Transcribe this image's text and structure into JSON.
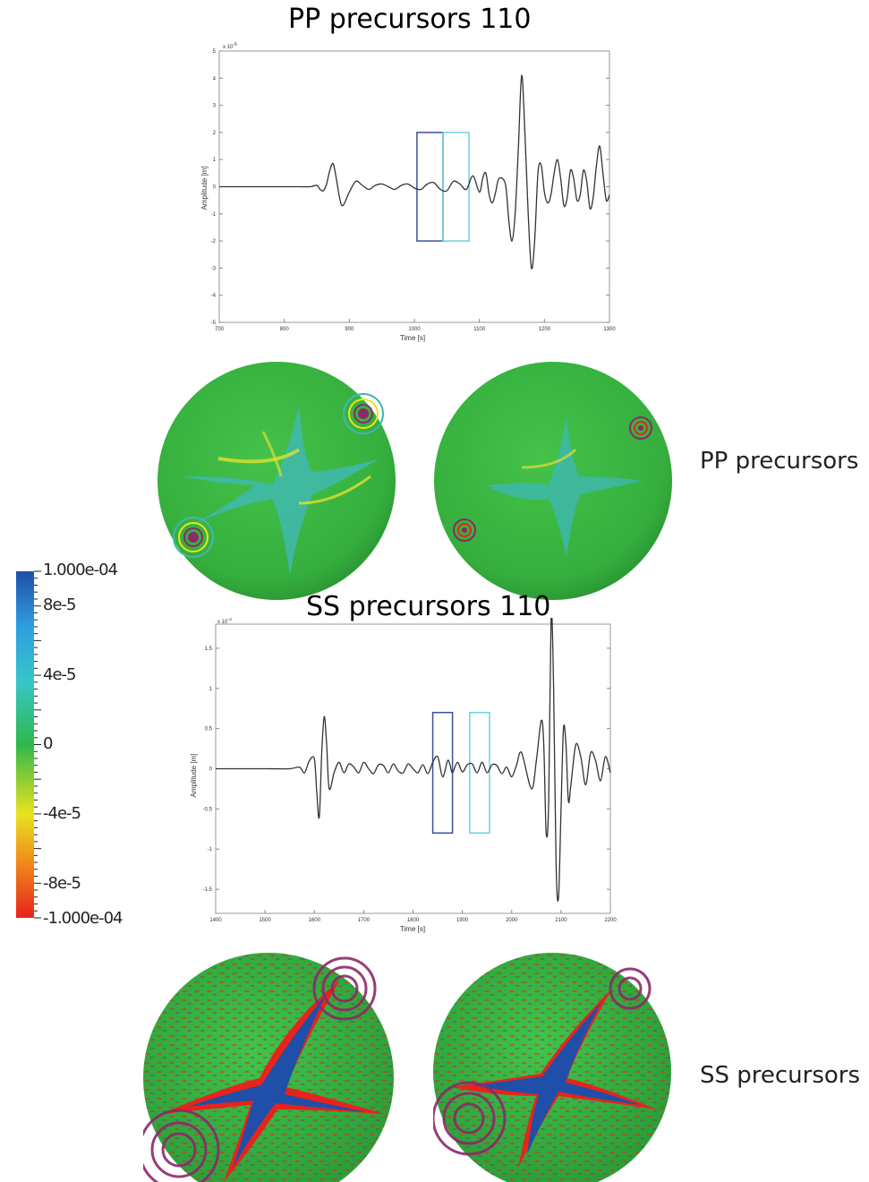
{
  "charts": {
    "pp": {
      "title": "PP precursors  110",
      "xlabel": "Time [s]",
      "ylabel": "Amplitude [m]",
      "exponent": "x 10",
      "exponent_power": "-6",
      "xticks": [
        "700",
        "800",
        "900",
        "1000",
        "1100",
        "1200",
        "1300"
      ],
      "yticks": [
        "5",
        "4",
        "3",
        "2",
        "1",
        "0",
        "-1",
        "-2",
        "-3",
        "-4",
        "-5"
      ]
    },
    "ss": {
      "title": "SS precursors 110",
      "xlabel": "Time [s]",
      "ylabel": "Amplitude [m]",
      "exponent": "x 10",
      "exponent_power": "-3",
      "xticks": [
        "1400",
        "1500",
        "1600",
        "1700",
        "1800",
        "1900",
        "2000",
        "2100",
        "2200"
      ],
      "yticks": [
        "1.5",
        "1",
        "0.5",
        "0",
        "-0.5",
        "-1",
        "-1.5"
      ]
    }
  },
  "labels": {
    "pp_side": "PP precursors",
    "ss_side": "SS precursors"
  },
  "colorbar": {
    "labels": [
      "1.000e-04",
      "8e-5",
      "4e-5",
      "0",
      "-4e-5",
      "-8e-5",
      "-1.000e-04"
    ],
    "colors": [
      "#1f4fa8",
      "#2f9ee0",
      "#36c6c8",
      "#2fb84a",
      "#e8e31f",
      "#f08a1c",
      "#e8231c"
    ]
  },
  "chart_data": [
    {
      "type": "line",
      "title": "PP precursors  110",
      "xlabel": "Time [s]",
      "ylabel": "Amplitude [m]",
      "xlim": [
        700,
        1300
      ],
      "ylim": [
        -5,
        5
      ],
      "y_scale_factor": "1e-6",
      "grid": false,
      "series": [
        {
          "x": [
            700,
            720,
            740,
            760,
            780,
            800,
            820,
            840,
            850,
            855,
            860,
            865,
            870,
            875,
            880,
            885,
            890,
            900,
            910,
            920,
            930,
            940,
            950,
            960,
            970,
            980,
            990,
            1000,
            1010,
            1020,
            1030,
            1040,
            1050,
            1060,
            1070,
            1080,
            1090,
            1100,
            1105,
            1110,
            1115,
            1120,
            1125,
            1130,
            1140,
            1145,
            1150,
            1155,
            1160,
            1165,
            1170,
            1175,
            1180,
            1185,
            1190,
            1195,
            1200,
            1205,
            1210,
            1215,
            1220,
            1225,
            1230,
            1235,
            1240,
            1245,
            1250,
            1255,
            1260,
            1265,
            1270,
            1275,
            1280,
            1285,
            1290,
            1295,
            1300
          ],
          "y": [
            0,
            0,
            0,
            0,
            0,
            0,
            0,
            0,
            0.05,
            -0.1,
            -0.15,
            0.1,
            0.6,
            0.85,
            0.3,
            -0.4,
            -0.7,
            -0.2,
            0.2,
            0.05,
            -0.1,
            0.05,
            0.1,
            0,
            -0.1,
            0.05,
            0.1,
            -0.05,
            -0.1,
            0.1,
            0.15,
            -0.1,
            -0.15,
            0.2,
            0.1,
            -0.1,
            0.4,
            -0.2,
            0.3,
            0.5,
            -0.3,
            -0.6,
            -0.2,
            0.3,
            0.1,
            -1.2,
            -2.0,
            -1.0,
            1.5,
            4.1,
            2.0,
            -1.0,
            -3.0,
            -2.0,
            0.5,
            0.8,
            -0.2,
            -0.6,
            -0.3,
            0.5,
            1.0,
            0.3,
            -0.7,
            -0.4,
            0.6,
            0.3,
            -0.5,
            -0.3,
            0.6,
            0.2,
            -0.8,
            -0.4,
            0.8,
            1.5,
            0.5,
            -0.5,
            -0.3
          ]
        }
      ],
      "boxes": [
        {
          "x": [
            1004,
            1044
          ],
          "y": [
            -2,
            2
          ],
          "color": "#3d4f9a"
        },
        {
          "x": [
            1044,
            1084
          ],
          "y": [
            -2,
            2
          ],
          "color": "#6fd0e0"
        }
      ]
    },
    {
      "type": "line",
      "title": "SS precursors 110",
      "xlabel": "Time [s]",
      "ylabel": "Amplitude [m]",
      "xlim": [
        1400,
        2200
      ],
      "ylim": [
        -1.8,
        1.8
      ],
      "y_scale_factor": "1e-3",
      "grid": false,
      "series": [
        {
          "x": [
            1400,
            1450,
            1500,
            1550,
            1570,
            1580,
            1590,
            1600,
            1605,
            1610,
            1615,
            1620,
            1625,
            1630,
            1640,
            1650,
            1660,
            1670,
            1680,
            1690,
            1700,
            1710,
            1720,
            1730,
            1740,
            1750,
            1760,
            1770,
            1780,
            1790,
            1800,
            1810,
            1820,
            1830,
            1840,
            1850,
            1860,
            1870,
            1875,
            1880,
            1890,
            1900,
            1910,
            1920,
            1930,
            1940,
            1950,
            1960,
            1970,
            1980,
            1990,
            2000,
            2010,
            2020,
            2040,
            2050,
            2060,
            2065,
            2070,
            2075,
            2080,
            2085,
            2090,
            2095,
            2100,
            2105,
            2110,
            2115,
            2120,
            2130,
            2140,
            2150,
            2160,
            2170,
            2180,
            2190,
            2200
          ],
          "y": [
            0,
            0,
            0,
            0,
            0.02,
            -0.05,
            0.1,
            0.12,
            -0.3,
            -0.6,
            0.2,
            0.65,
            0.3,
            -0.25,
            -0.05,
            0.08,
            -0.05,
            0.06,
            0.02,
            -0.05,
            0.08,
            0.0,
            -0.06,
            0.05,
            0.04,
            -0.05,
            0.06,
            -0.03,
            -0.05,
            0.06,
            0.0,
            -0.05,
            0.05,
            -0.06,
            0.08,
            0.15,
            -0.1,
            0.1,
            0.05,
            -0.05,
            0.08,
            -0.04,
            0.05,
            0.06,
            -0.05,
            0.08,
            -0.05,
            0.05,
            0.04,
            -0.06,
            0.02,
            -0.1,
            0.05,
            0.2,
            -0.25,
            0.1,
            0.6,
            0.3,
            -0.8,
            -0.4,
            1.9,
            1.0,
            -1.2,
            -1.6,
            -0.5,
            0.5,
            0.3,
            -0.4,
            -0.2,
            0.3,
            0.15,
            -0.2,
            0.2,
            0.1,
            -0.15,
            0.15,
            -0.05
          ]
        }
      ],
      "boxes": [
        {
          "x": [
            1840,
            1880
          ],
          "y": [
            -0.8,
            0.7
          ],
          "color": "#3d4f9a"
        },
        {
          "x": [
            1915,
            1955
          ],
          "y": [
            -0.8,
            0.7
          ],
          "color": "#6fd0e0"
        }
      ]
    }
  ]
}
